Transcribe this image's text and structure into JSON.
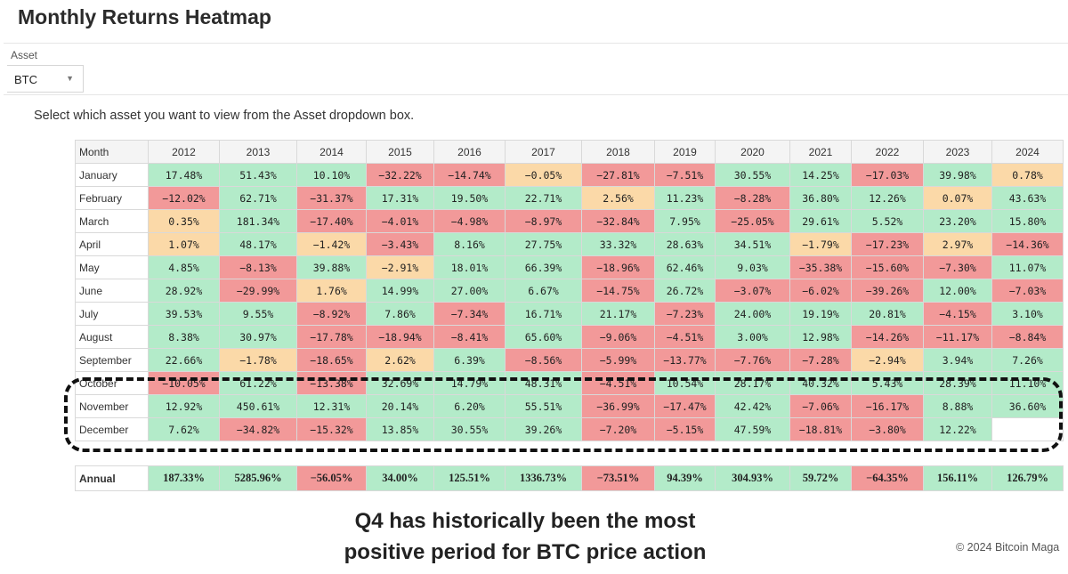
{
  "page": {
    "title": "Monthly Returns Heatmap",
    "instructions": "Select which asset you want to view from the Asset dropdown box.",
    "caption_line1": "Q4 has historically been the most",
    "caption_line2": "positive period for BTC price action",
    "copyright": "© 2024 Bitcoin Maga"
  },
  "asset_selector": {
    "label": "Asset",
    "value": "BTC"
  },
  "colors": {
    "positive": "#b3ebc9",
    "negative": "#f29999",
    "neutral": "#fbd9a8"
  },
  "chart_data": {
    "type": "heatmap",
    "title": "Monthly Returns Heatmap",
    "row_header": "Month",
    "columns": [
      "2012",
      "2013",
      "2014",
      "2015",
      "2016",
      "2017",
      "2018",
      "2019",
      "2020",
      "2021",
      "2022",
      "2023",
      "2024"
    ],
    "rows": [
      {
        "month": "January",
        "values": [
          "17.48%",
          "51.43%",
          "10.10%",
          "−32.22%",
          "−14.74%",
          "−0.05%",
          "−27.81%",
          "−7.51%",
          "30.55%",
          "14.25%",
          "−17.03%",
          "39.98%",
          "0.78%"
        ],
        "colors": [
          "pos",
          "pos",
          "pos",
          "neg",
          "neg",
          "neu",
          "neg",
          "neg",
          "pos",
          "pos",
          "neg",
          "pos",
          "neu"
        ]
      },
      {
        "month": "February",
        "values": [
          "−12.02%",
          "62.71%",
          "−31.37%",
          "17.31%",
          "19.50%",
          "22.71%",
          "2.56%",
          "11.23%",
          "−8.28%",
          "36.80%",
          "12.26%",
          "0.07%",
          "43.63%"
        ],
        "colors": [
          "neg",
          "pos",
          "neg",
          "pos",
          "pos",
          "pos",
          "neu",
          "pos",
          "neg",
          "pos",
          "pos",
          "neu",
          "pos"
        ]
      },
      {
        "month": "March",
        "values": [
          "0.35%",
          "181.34%",
          "−17.40%",
          "−4.01%",
          "−4.98%",
          "−8.97%",
          "−32.84%",
          "7.95%",
          "−25.05%",
          "29.61%",
          "5.52%",
          "23.20%",
          "15.80%"
        ],
        "colors": [
          "neu",
          "pos",
          "neg",
          "neg",
          "neg",
          "neg",
          "neg",
          "pos",
          "neg",
          "pos",
          "pos",
          "pos",
          "pos"
        ]
      },
      {
        "month": "April",
        "values": [
          "1.07%",
          "48.17%",
          "−1.42%",
          "−3.43%",
          "8.16%",
          "27.75%",
          "33.32%",
          "28.63%",
          "34.51%",
          "−1.79%",
          "−17.23%",
          "2.97%",
          "−14.36%"
        ],
        "colors": [
          "neu",
          "pos",
          "neu",
          "neg",
          "pos",
          "pos",
          "pos",
          "pos",
          "pos",
          "neu",
          "neg",
          "neu",
          "neg"
        ]
      },
      {
        "month": "May",
        "values": [
          "4.85%",
          "−8.13%",
          "39.88%",
          "−2.91%",
          "18.01%",
          "66.39%",
          "−18.96%",
          "62.46%",
          "9.03%",
          "−35.38%",
          "−15.60%",
          "−7.30%",
          "11.07%"
        ],
        "colors": [
          "pos",
          "neg",
          "pos",
          "neu",
          "pos",
          "pos",
          "neg",
          "pos",
          "pos",
          "neg",
          "neg",
          "neg",
          "pos"
        ]
      },
      {
        "month": "June",
        "values": [
          "28.92%",
          "−29.99%",
          "1.76%",
          "14.99%",
          "27.00%",
          "6.67%",
          "−14.75%",
          "26.72%",
          "−3.07%",
          "−6.02%",
          "−39.26%",
          "12.00%",
          "−7.03%"
        ],
        "colors": [
          "pos",
          "neg",
          "neu",
          "pos",
          "pos",
          "pos",
          "neg",
          "pos",
          "neg",
          "neg",
          "neg",
          "pos",
          "neg"
        ]
      },
      {
        "month": "July",
        "values": [
          "39.53%",
          "9.55%",
          "−8.92%",
          "7.86%",
          "−7.34%",
          "16.71%",
          "21.17%",
          "−7.23%",
          "24.00%",
          "19.19%",
          "20.81%",
          "−4.15%",
          "3.10%"
        ],
        "colors": [
          "pos",
          "pos",
          "neg",
          "pos",
          "neg",
          "pos",
          "pos",
          "neg",
          "pos",
          "pos",
          "pos",
          "neg",
          "pos"
        ]
      },
      {
        "month": "August",
        "values": [
          "8.38%",
          "30.97%",
          "−17.78%",
          "−18.94%",
          "−8.41%",
          "65.60%",
          "−9.06%",
          "−4.51%",
          "3.00%",
          "12.98%",
          "−14.26%",
          "−11.17%",
          "−8.84%"
        ],
        "colors": [
          "pos",
          "pos",
          "neg",
          "neg",
          "neg",
          "pos",
          "neg",
          "neg",
          "pos",
          "pos",
          "neg",
          "neg",
          "neg"
        ]
      },
      {
        "month": "September",
        "values": [
          "22.66%",
          "−1.78%",
          "−18.65%",
          "2.62%",
          "6.39%",
          "−8.56%",
          "−5.99%",
          "−13.77%",
          "−7.76%",
          "−7.28%",
          "−2.94%",
          "3.94%",
          "7.26%"
        ],
        "colors": [
          "pos",
          "neu",
          "neg",
          "neu",
          "pos",
          "neg",
          "neg",
          "neg",
          "neg",
          "neg",
          "neu",
          "pos",
          "pos"
        ]
      },
      {
        "month": "October",
        "values": [
          "−10.05%",
          "61.22%",
          "−13.38%",
          "32.69%",
          "14.79%",
          "48.31%",
          "−4.51%",
          "10.54%",
          "28.17%",
          "40.32%",
          "5.43%",
          "28.39%",
          "11.10%"
        ],
        "colors": [
          "neg",
          "pos",
          "neg",
          "pos",
          "pos",
          "pos",
          "neg",
          "pos",
          "pos",
          "pos",
          "pos",
          "pos",
          "pos"
        ]
      },
      {
        "month": "November",
        "values": [
          "12.92%",
          "450.61%",
          "12.31%",
          "20.14%",
          "6.20%",
          "55.51%",
          "−36.99%",
          "−17.47%",
          "42.42%",
          "−7.06%",
          "−16.17%",
          "8.88%",
          "36.60%"
        ],
        "colors": [
          "pos",
          "pos",
          "pos",
          "pos",
          "pos",
          "pos",
          "neg",
          "neg",
          "pos",
          "neg",
          "neg",
          "pos",
          "pos"
        ]
      },
      {
        "month": "December",
        "values": [
          "7.62%",
          "−34.82%",
          "−15.32%",
          "13.85%",
          "30.55%",
          "39.26%",
          "−7.20%",
          "−5.15%",
          "47.59%",
          "−18.81%",
          "−3.80%",
          "12.22%",
          ""
        ],
        "colors": [
          "pos",
          "neg",
          "neg",
          "pos",
          "pos",
          "pos",
          "neg",
          "neg",
          "pos",
          "neg",
          "neg",
          "pos",
          "blank"
        ]
      }
    ],
    "annual": {
      "label": "Annual",
      "values": [
        "187.33%",
        "5285.96%",
        "−56.05%",
        "34.00%",
        "125.51%",
        "1336.73%",
        "−73.51%",
        "94.39%",
        "304.93%",
        "59.72%",
        "−64.35%",
        "156.11%",
        "126.79%"
      ],
      "colors": [
        "pos",
        "pos",
        "neg",
        "pos",
        "pos",
        "pos",
        "neg",
        "pos",
        "pos",
        "pos",
        "neg",
        "pos",
        "pos"
      ]
    },
    "highlight": {
      "rows": [
        "October",
        "November",
        "December"
      ],
      "style": "dashed outline"
    }
  }
}
